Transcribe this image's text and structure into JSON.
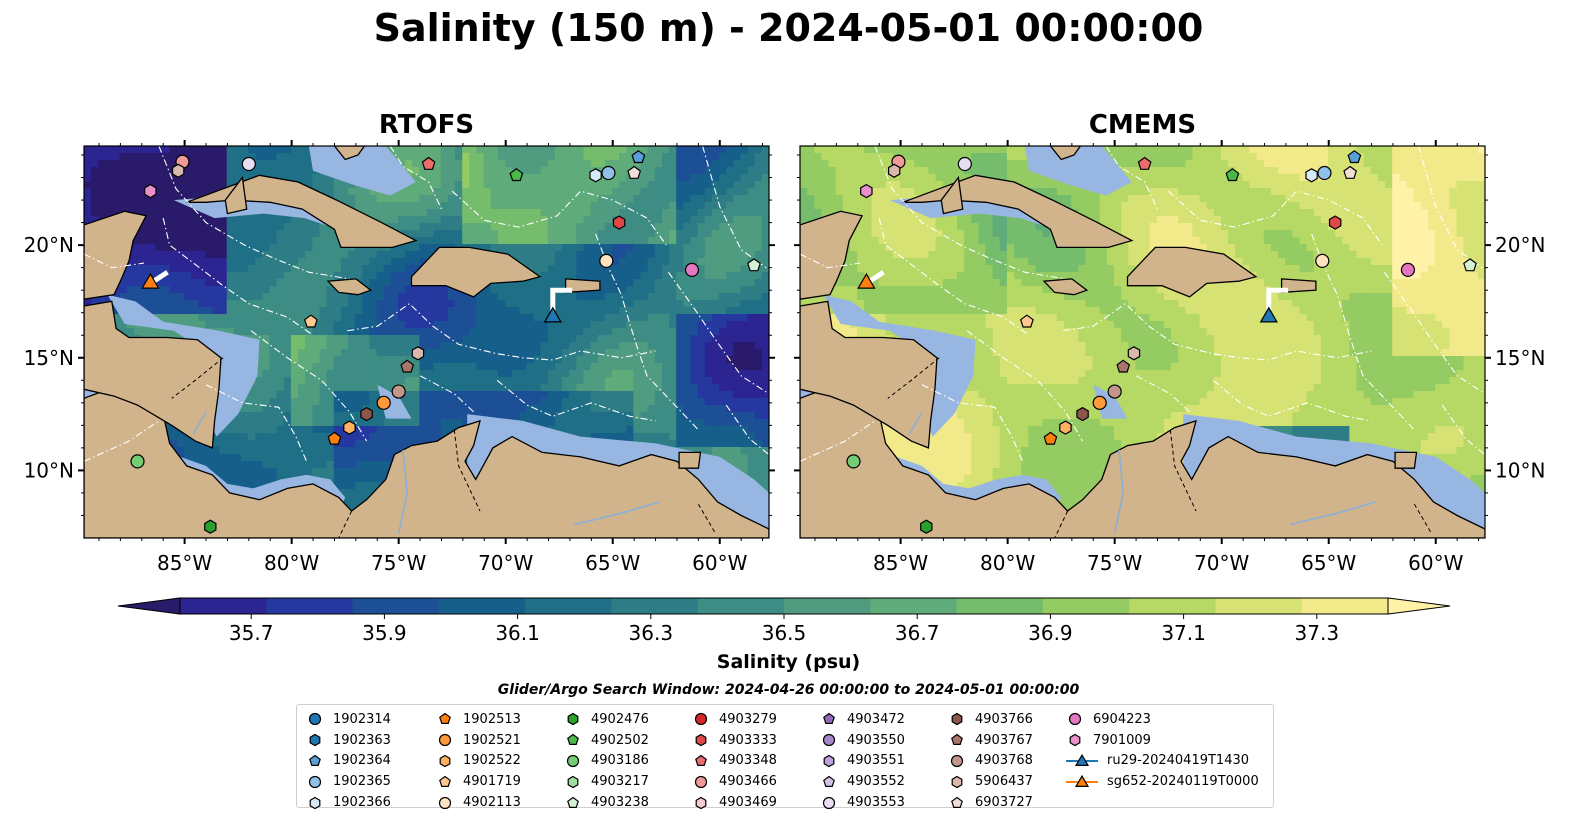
{
  "title": "Salinity (150 m) - 2024-05-01 00:00:00",
  "panels": [
    {
      "title": "RTOFS"
    },
    {
      "title": "CMEMS"
    }
  ],
  "colorbar": {
    "label": "Salinity (psu)",
    "min": 35.7,
    "max": 37.3,
    "step": 0.1,
    "extend": "both",
    "ticks": [
      "35.7",
      "35.9",
      "36.1",
      "36.3",
      "36.5",
      "36.7",
      "36.9",
      "37.1",
      "37.3"
    ],
    "colors": [
      "#2a1a6a",
      "#2b2491",
      "#24389f",
      "#1d4f96",
      "#175f8b",
      "#1f6f87",
      "#2e7d86",
      "#3e8d84",
      "#4f9c80",
      "#5fab7a",
      "#75bc6c",
      "#94cb62",
      "#b6d865",
      "#d6e273",
      "#f2e98a",
      "#fff2a8"
    ]
  },
  "map": {
    "lon_ticks": [
      "85°W",
      "80°W",
      "75°W",
      "70°W",
      "65°W",
      "60°W"
    ],
    "lat_ticks": [
      "20°N",
      "15°N",
      "10°N"
    ],
    "land_color": "#d2b48c",
    "shelf_color": "#98b6e2",
    "deep_color": "#26185f"
  },
  "search_window": "Glider/Argo Search Window: 2024-04-26 00:00:00 to 2024-05-01 00:00:00",
  "legend": [
    [
      {
        "label": "1902314",
        "marker": "circle",
        "color": "#1f77b4"
      },
      {
        "label": "1902363",
        "marker": "hexagon",
        "color": "#1f77b4"
      },
      {
        "label": "1902364",
        "marker": "pentagon",
        "color": "#5aa0d8"
      },
      {
        "label": "1902365",
        "marker": "circle",
        "color": "#8ec0e8"
      },
      {
        "label": "1902366",
        "marker": "hexagon",
        "color": "#d6eaf8"
      }
    ],
    [
      {
        "label": "1902513",
        "marker": "pentagon",
        "color": "#ff7f0e"
      },
      {
        "label": "1902521",
        "marker": "circle",
        "color": "#ff9a3c"
      },
      {
        "label": "1902522",
        "marker": "hexagon",
        "color": "#ffb060"
      },
      {
        "label": "4901719",
        "marker": "pentagon",
        "color": "#ffc890"
      },
      {
        "label": "4902113",
        "marker": "circle",
        "color": "#ffe2c0"
      }
    ],
    [
      {
        "label": "4902476",
        "marker": "hexagon",
        "color": "#2ca02c"
      },
      {
        "label": "4902502",
        "marker": "pentagon",
        "color": "#4cb84c"
      },
      {
        "label": "4903186",
        "marker": "circle",
        "color": "#74cc74"
      },
      {
        "label": "4903217",
        "marker": "hexagon",
        "color": "#a0dea0"
      },
      {
        "label": "4903238",
        "marker": "pentagon",
        "color": "#d2f2d2"
      }
    ],
    [
      {
        "label": "4903279",
        "marker": "circle",
        "color": "#d62728"
      },
      {
        "label": "4903333",
        "marker": "hexagon",
        "color": "#e04848"
      },
      {
        "label": "4903348",
        "marker": "pentagon",
        "color": "#ea6c6c"
      },
      {
        "label": "4903466",
        "marker": "circle",
        "color": "#f09a9a"
      },
      {
        "label": "4903469",
        "marker": "hexagon",
        "color": "#f8cccc"
      }
    ],
    [
      {
        "label": "4903472",
        "marker": "pentagon",
        "color": "#9467bd"
      },
      {
        "label": "4903550",
        "marker": "circle",
        "color": "#a886cc"
      },
      {
        "label": "4903551",
        "marker": "hexagon",
        "color": "#bca4da"
      },
      {
        "label": "4903552",
        "marker": "pentagon",
        "color": "#d2c2e8"
      },
      {
        "label": "4903553",
        "marker": "circle",
        "color": "#e8def4"
      }
    ],
    [
      {
        "label": "4903766",
        "marker": "hexagon",
        "color": "#8c564b"
      },
      {
        "label": "4903767",
        "marker": "pentagon",
        "color": "#a8766a"
      },
      {
        "label": "4903768",
        "marker": "circle",
        "color": "#c2968a"
      },
      {
        "label": "5906437",
        "marker": "hexagon",
        "color": "#dab8ae"
      },
      {
        "label": "6903727",
        "marker": "pentagon",
        "color": "#f2dcd6"
      }
    ],
    [
      {
        "label": "6904223",
        "marker": "circle",
        "color": "#e377c2"
      },
      {
        "label": "7901009",
        "marker": "hexagon",
        "color": "#e890cc"
      },
      {
        "label": "ru29-20240419T1430",
        "marker": "triangle",
        "color": "#1f77b4"
      },
      {
        "label": "sg652-20240119T0000",
        "marker": "triangle",
        "color": "#ff7f0e"
      }
    ]
  ],
  "chart_data": [
    {
      "type": "heatmap",
      "title": "RTOFS",
      "xlabel": "",
      "ylabel": "",
      "xlim": [
        -89.7,
        -57.7
      ],
      "ylim": [
        7.0,
        24.4
      ],
      "grid": false,
      "floats": [
        {
          "id": "1902364",
          "lon": -63.8,
          "lat": 23.9
        },
        {
          "id": "1902365",
          "lon": -65.2,
          "lat": 23.2
        },
        {
          "id": "1902366",
          "lon": -65.8,
          "lat": 23.1
        },
        {
          "id": "6903727",
          "lon": -64.0,
          "lat": 23.2
        },
        {
          "id": "4902502",
          "lon": -69.5,
          "lat": 23.1
        },
        {
          "id": "4903348",
          "lon": -73.6,
          "lat": 23.6
        },
        {
          "id": "4903466",
          "lon": -85.1,
          "lat": 23.7
        },
        {
          "id": "4903553",
          "lon": -82.0,
          "lat": 23.6
        },
        {
          "id": "5906437",
          "lon": -85.3,
          "lat": 23.3
        },
        {
          "id": "7901009",
          "lon": -86.6,
          "lat": 22.4
        },
        {
          "id": "4903333",
          "lon": -64.7,
          "lat": 21.0
        },
        {
          "id": "4902113",
          "lon": -65.3,
          "lat": 19.3
        },
        {
          "id": "6904223",
          "lon": -61.3,
          "lat": 18.9
        },
        {
          "id": "4903238",
          "lon": -58.4,
          "lat": 19.1
        },
        {
          "id": "4901719",
          "lon": -79.1,
          "lat": 16.6
        },
        {
          "id": "5906437",
          "lon": -74.1,
          "lat": 15.2
        },
        {
          "id": "4903767",
          "lon": -74.6,
          "lat": 14.6
        },
        {
          "id": "4903768",
          "lon": -75.0,
          "lat": 13.5
        },
        {
          "id": "1902521",
          "lon": -75.7,
          "lat": 13.0
        },
        {
          "id": "4903766",
          "lon": -76.5,
          "lat": 12.5
        },
        {
          "id": "1902522",
          "lon": -77.3,
          "lat": 11.9
        },
        {
          "id": "1902513",
          "lon": -78.0,
          "lat": 11.4
        },
        {
          "id": "4903186",
          "lon": -87.2,
          "lat": 10.4
        },
        {
          "id": "4902476",
          "lon": -83.8,
          "lat": 7.5
        }
      ],
      "gliders": [
        {
          "id": "ru29-20240419T1430",
          "lon": -67.8,
          "lat": 16.8
        },
        {
          "id": "sg652-20240119T0000",
          "lon": -86.6,
          "lat": 18.3
        }
      ]
    },
    {
      "type": "heatmap",
      "title": "CMEMS",
      "xlabel": "",
      "ylabel": "",
      "xlim": [
        -89.7,
        -57.7
      ],
      "ylim": [
        7.0,
        24.4
      ],
      "grid": false,
      "floats": [
        {
          "id": "1902364",
          "lon": -63.8,
          "lat": 23.9
        },
        {
          "id": "1902365",
          "lon": -65.2,
          "lat": 23.2
        },
        {
          "id": "1902366",
          "lon": -65.8,
          "lat": 23.1
        },
        {
          "id": "6903727",
          "lon": -64.0,
          "lat": 23.2
        },
        {
          "id": "4902502",
          "lon": -69.5,
          "lat": 23.1
        },
        {
          "id": "4903348",
          "lon": -73.6,
          "lat": 23.6
        },
        {
          "id": "4903466",
          "lon": -85.1,
          "lat": 23.7
        },
        {
          "id": "4903553",
          "lon": -82.0,
          "lat": 23.6
        },
        {
          "id": "5906437",
          "lon": -85.3,
          "lat": 23.3
        },
        {
          "id": "7901009",
          "lon": -86.6,
          "lat": 22.4
        },
        {
          "id": "4903333",
          "lon": -64.7,
          "lat": 21.0
        },
        {
          "id": "4902113",
          "lon": -65.3,
          "lat": 19.3
        },
        {
          "id": "6904223",
          "lon": -61.3,
          "lat": 18.9
        },
        {
          "id": "4903238",
          "lon": -58.4,
          "lat": 19.1
        },
        {
          "id": "4901719",
          "lon": -79.1,
          "lat": 16.6
        },
        {
          "id": "5906437",
          "lon": -74.1,
          "lat": 15.2
        },
        {
          "id": "4903767",
          "lon": -74.6,
          "lat": 14.6
        },
        {
          "id": "4903768",
          "lon": -75.0,
          "lat": 13.5
        },
        {
          "id": "1902521",
          "lon": -75.7,
          "lat": 13.0
        },
        {
          "id": "4903766",
          "lon": -76.5,
          "lat": 12.5
        },
        {
          "id": "1902522",
          "lon": -77.3,
          "lat": 11.9
        },
        {
          "id": "1902513",
          "lon": -78.0,
          "lat": 11.4
        },
        {
          "id": "4903186",
          "lon": -87.2,
          "lat": 10.4
        },
        {
          "id": "4902476",
          "lon": -83.8,
          "lat": 7.5
        }
      ],
      "gliders": [
        {
          "id": "ru29-20240419T1430",
          "lon": -67.8,
          "lat": 16.8
        },
        {
          "id": "sg652-20240119T0000",
          "lon": -86.6,
          "lat": 18.3
        }
      ]
    }
  ]
}
